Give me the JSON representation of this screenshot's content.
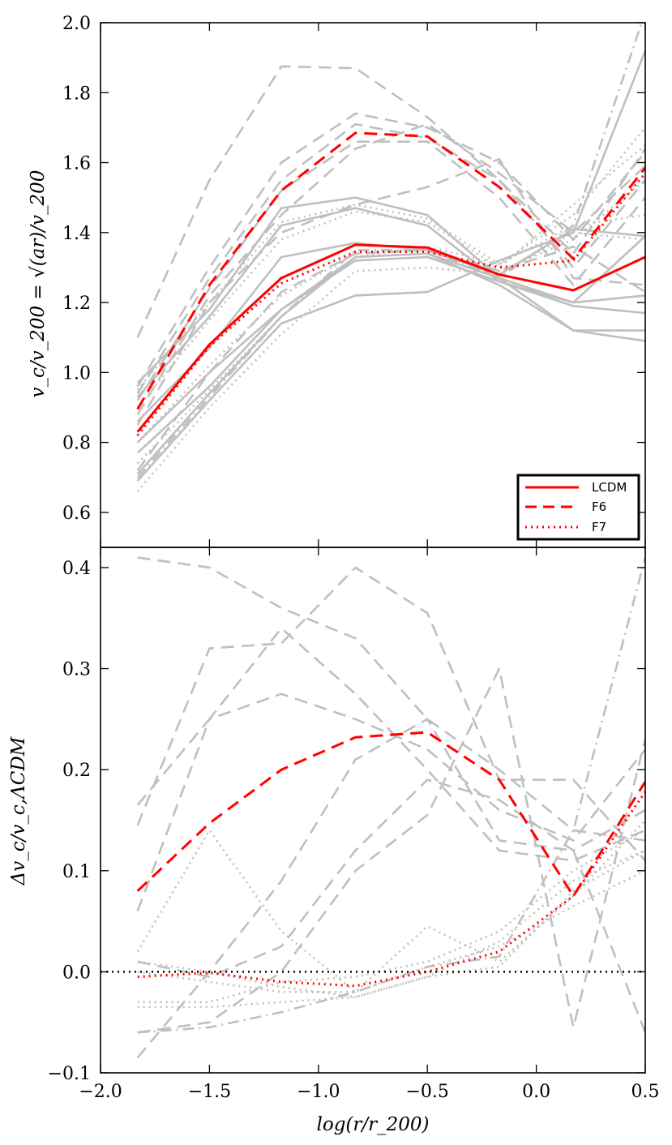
{
  "chart_data": [
    {
      "type": "line",
      "panel": "top",
      "ylabel": "v_c/v_200 = √(ar)/v_200",
      "xlabel": "log(r/r_200)",
      "xlim": [
        -2.0,
        0.5
      ],
      "ylim": [
        0.5,
        2.0
      ],
      "x_ticks": [
        "−2.0",
        "−1.5",
        "−1.0",
        "−0.5",
        "0.0",
        "0.5"
      ],
      "y_ticks": [
        "0.6",
        "0.8",
        "1.0",
        "1.2",
        "1.4",
        "1.6",
        "1.8",
        "2.0"
      ],
      "x": [
        -1.83,
        -1.5,
        -1.17,
        -0.83,
        -0.5,
        -0.17,
        0.17,
        0.5
      ],
      "legend": {
        "position": "lower-right",
        "entries": [
          "LCDM",
          "F6",
          "F7"
        ]
      },
      "series": [
        {
          "name": "LCDM",
          "style": "solid",
          "color": "#ff0000",
          "values": [
            0.83,
            1.08,
            1.27,
            1.365,
            1.357,
            1.28,
            1.235,
            1.33
          ]
        },
        {
          "name": "F6",
          "style": "dashed",
          "color": "#ff0000",
          "values": [
            0.895,
            1.25,
            1.52,
            1.685,
            1.675,
            1.53,
            1.325,
            1.585
          ]
        },
        {
          "name": "F7",
          "style": "dotted",
          "color": "#ff0000",
          "values": [
            0.82,
            1.075,
            1.255,
            1.345,
            1.345,
            1.3,
            1.32,
            1.57
          ]
        }
      ],
      "background_series": [
        {
          "style": "solid",
          "color": "#bfbfbf",
          "values": [
            0.97,
            1.18,
            1.47,
            1.5,
            1.45,
            1.27,
            1.2,
            1.39
          ]
        },
        {
          "style": "solid",
          "color": "#bfbfbf",
          "values": [
            0.93,
            1.16,
            1.42,
            1.47,
            1.42,
            1.26,
            1.19,
            1.17
          ]
        },
        {
          "style": "solid",
          "color": "#bfbfbf",
          "values": [
            0.86,
            1.07,
            1.33,
            1.37,
            1.35,
            1.28,
            1.41,
            1.39
          ]
        },
        {
          "style": "solid",
          "color": "#bfbfbf",
          "values": [
            0.8,
            1.0,
            1.18,
            1.33,
            1.34,
            1.27,
            1.12,
            1.12
          ]
        },
        {
          "style": "solid",
          "color": "#bfbfbf",
          "values": [
            0.77,
            0.96,
            1.18,
            1.32,
            1.33,
            1.26,
            1.2,
            1.22
          ]
        },
        {
          "style": "solid",
          "color": "#bfbfbf",
          "values": [
            0.71,
            0.94,
            1.16,
            1.33,
            1.34,
            1.25,
            1.12,
            1.09
          ]
        },
        {
          "style": "solid",
          "color": "#bfbfbf",
          "values": [
            0.69,
            0.92,
            1.14,
            1.22,
            1.23,
            1.32,
            1.4,
            1.92
          ]
        },
        {
          "style": "dashed",
          "color": "#bfbfbf",
          "values": [
            1.1,
            1.55,
            1.875,
            1.87,
            1.73,
            1.55,
            1.34,
            1.64
          ]
        },
        {
          "style": "dashed",
          "color": "#bfbfbf",
          "values": [
            0.96,
            1.3,
            1.6,
            1.74,
            1.7,
            1.6,
            1.38,
            1.63
          ]
        },
        {
          "style": "dashed",
          "color": "#bfbfbf",
          "values": [
            0.94,
            1.27,
            1.55,
            1.71,
            1.67,
            1.55,
            1.3,
            1.55
          ]
        },
        {
          "style": "dashed",
          "color": "#bfbfbf",
          "values": [
            0.92,
            1.24,
            1.52,
            1.66,
            1.66,
            1.5,
            1.25,
            1.5
          ]
        },
        {
          "style": "dashed",
          "color": "#bfbfbf",
          "values": [
            0.88,
            1.22,
            1.45,
            1.64,
            1.71,
            1.57,
            1.4,
            1.59
          ]
        },
        {
          "style": "dashed",
          "color": "#bfbfbf",
          "values": [
            0.85,
            1.2,
            1.4,
            1.48,
            1.53,
            1.61,
            1.27,
            1.25
          ]
        },
        {
          "style": "dashed",
          "color": "#bfbfbf",
          "values": [
            0.72,
            1.0,
            1.23,
            1.34,
            1.35,
            1.29,
            1.36,
            1.23
          ]
        },
        {
          "style": "dotted",
          "color": "#bfbfbf",
          "values": [
            0.95,
            1.2,
            1.43,
            1.48,
            1.44,
            1.31,
            1.45,
            1.7
          ]
        },
        {
          "style": "dotted",
          "color": "#bfbfbf",
          "values": [
            0.9,
            1.15,
            1.38,
            1.46,
            1.43,
            1.3,
            1.48,
            1.65
          ]
        },
        {
          "style": "dotted",
          "color": "#bfbfbf",
          "values": [
            0.8,
            1.02,
            1.22,
            1.34,
            1.35,
            1.29,
            1.38,
            1.55
          ]
        },
        {
          "style": "dotted",
          "color": "#bfbfbf",
          "values": [
            0.74,
            0.95,
            1.16,
            1.33,
            1.36,
            1.31,
            1.42,
            1.45
          ]
        },
        {
          "style": "dotted",
          "color": "#bfbfbf",
          "values": [
            0.66,
            0.9,
            1.11,
            1.29,
            1.3,
            1.28,
            1.4,
            1.38
          ]
        },
        {
          "style": "dashdot",
          "color": "#bfbfbf",
          "values": [
            0.7,
            0.93,
            1.16,
            1.35,
            1.35,
            1.27,
            1.42,
            2.03
          ]
        }
      ]
    },
    {
      "type": "line",
      "panel": "bottom",
      "ylabel": "Δv_c/v_c,ΛCDM",
      "xlabel": "log(r/r_200)",
      "xlim": [
        -2.0,
        0.5
      ],
      "ylim": [
        -0.1,
        0.42
      ],
      "x_ticks": [
        "−2.0",
        "−1.5",
        "−1.0",
        "−0.5",
        "0.0",
        "0.5"
      ],
      "y_ticks": [
        "−0.1",
        "0.0",
        "0.1",
        "0.2",
        "0.3",
        "0.4"
      ],
      "x": [
        -1.83,
        -1.5,
        -1.17,
        -0.83,
        -0.5,
        -0.17,
        0.17,
        0.5
      ],
      "reference_line": {
        "y": 0.0,
        "style": "dotted",
        "color": "#000000"
      },
      "series": [
        {
          "name": "F6",
          "style": "dashed",
          "color": "#ff0000",
          "values": [
            0.08,
            0.147,
            0.2,
            0.232,
            0.237,
            0.19,
            0.075,
            0.188
          ]
        },
        {
          "name": "F7",
          "style": "dotted",
          "color": "#ff0000",
          "values": [
            -0.005,
            -0.001,
            -0.01,
            -0.014,
            0.0,
            0.02,
            0.075,
            0.178
          ]
        }
      ],
      "background_series": [
        {
          "style": "dashed",
          "color": "#bfbfbf",
          "values": [
            0.165,
            0.25,
            0.275,
            0.25,
            0.22,
            0.16,
            0.13,
            0.22
          ]
        },
        {
          "style": "dashed",
          "color": "#bfbfbf",
          "values": [
            0.145,
            0.32,
            0.325,
            0.4,
            0.355,
            0.19,
            0.19,
            0.11
          ]
        },
        {
          "style": "dashed",
          "color": "#bfbfbf",
          "values": [
            0.06,
            0.25,
            0.34,
            0.275,
            0.2,
            0.12,
            0.11,
            0.14
          ]
        },
        {
          "style": "dashed",
          "color": "#bfbfbf",
          "values": [
            0.01,
            -0.005,
            0.025,
            0.12,
            0.19,
            0.17,
            0.12,
            0.16
          ]
        },
        {
          "style": "dashed",
          "color": "#bfbfbf",
          "values": [
            -0.06,
            -0.05,
            0.0,
            0.1,
            0.155,
            0.3,
            -0.055,
            0.23
          ]
        },
        {
          "style": "dashed",
          "color": "#bfbfbf",
          "values": [
            -0.085,
            0.0,
            0.09,
            0.21,
            0.25,
            0.13,
            0.12,
            -0.06
          ]
        },
        {
          "style": "dashed",
          "color": "#bfbfbf",
          "values": [
            0.41,
            0.4,
            0.36,
            0.33,
            0.25,
            0.2,
            0.14,
            0.13
          ]
        },
        {
          "style": "dotted",
          "color": "#bfbfbf",
          "values": [
            0.02,
            0.14,
            0.04,
            -0.02,
            0.045,
            0.01,
            0.075,
            0.15
          ]
        },
        {
          "style": "dotted",
          "color": "#bfbfbf",
          "values": [
            0.01,
            0.0,
            -0.015,
            -0.025,
            -0.005,
            0.03,
            0.09,
            0.12
          ]
        },
        {
          "style": "dotted",
          "color": "#bfbfbf",
          "values": [
            0.0,
            -0.01,
            -0.02,
            -0.02,
            0.005,
            0.025,
            0.065,
            0.1
          ]
        },
        {
          "style": "dotted",
          "color": "#bfbfbf",
          "values": [
            -0.03,
            -0.03,
            -0.01,
            -0.005,
            0.01,
            0.04,
            0.1,
            0.14
          ]
        },
        {
          "style": "dotted",
          "color": "#bfbfbf",
          "values": [
            -0.035,
            -0.035,
            -0.03,
            -0.025,
            -0.005,
            0.005,
            0.08,
            0.12
          ]
        },
        {
          "style": "dashdot",
          "color": "#bfbfbf",
          "values": [
            -0.06,
            -0.055,
            -0.04,
            -0.02,
            0.005,
            0.015,
            0.14,
            0.41
          ]
        }
      ]
    }
  ]
}
